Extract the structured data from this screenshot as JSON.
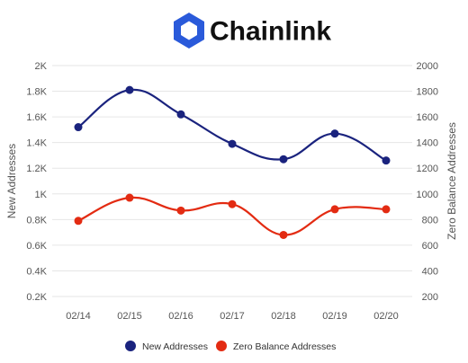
{
  "brand": {
    "name": "Chainlink",
    "color": "#2a5ada",
    "icon": "chainlink-hexagon-logo"
  },
  "chart_data": {
    "type": "line",
    "categories": [
      "02/14",
      "02/15",
      "02/16",
      "02/17",
      "02/18",
      "02/19",
      "02/20"
    ],
    "series": [
      {
        "name": "New Addresses",
        "axis": "left",
        "color": "#1a237e",
        "values": [
          1520,
          1810,
          1620,
          1390,
          1270,
          1470,
          1260
        ]
      },
      {
        "name": "Zero Balance Addresses",
        "axis": "right",
        "color": "#e32b12",
        "values": [
          790,
          970,
          870,
          920,
          680,
          880,
          880
        ]
      }
    ],
    "y_left": {
      "label": "New Addresses",
      "ylim": [
        200,
        2000
      ],
      "ticks": [
        200,
        400,
        600,
        800,
        1000,
        1200,
        1400,
        1600,
        1800,
        2000
      ],
      "tick_labels": [
        "0.2K",
        "0.4K",
        "0.6K",
        "0.8K",
        "1K",
        "1.2K",
        "1.4K",
        "1.6K",
        "1.8K",
        "2K"
      ]
    },
    "y_right": {
      "label": "Zero Balance Addresses",
      "ylim": [
        200,
        2000
      ],
      "ticks": [
        200,
        400,
        600,
        800,
        1000,
        1200,
        1400,
        1600,
        1800,
        2000
      ],
      "tick_labels": [
        "200",
        "400",
        "600",
        "800",
        "1000",
        "1200",
        "1400",
        "1600",
        "1800",
        "2000"
      ]
    },
    "grid": true,
    "legend": "bottom"
  }
}
